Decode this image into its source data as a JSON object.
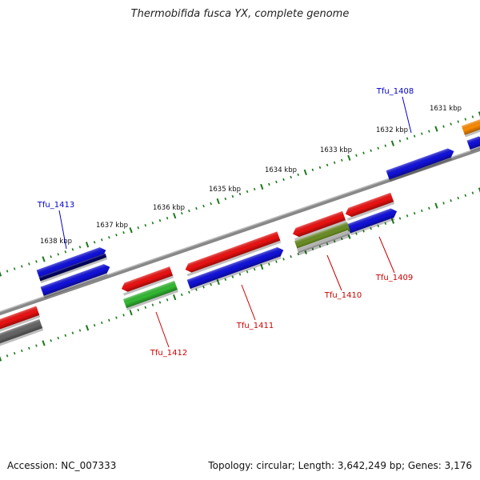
{
  "title": "Thermobifida fusca YX, complete genome",
  "footer": {
    "accession": "Accession: NC_007333",
    "summary": "Topology: circular; Length: 3,642,249 bp; Genes: 3,176"
  },
  "colors": {
    "backbone": "#888888",
    "tick": "#1a7a1a",
    "red": "#ee1111",
    "blue": "#1111dd",
    "green": "#33bb33",
    "olive": "#6b8e23",
    "orange": "#ff8c00",
    "gray": "#666666",
    "navy": "#000066",
    "label_red": "#cc0000",
    "label_blue": "#0000cc"
  },
  "scale_labels": [
    "1631 kbp",
    "1632 kbp",
    "1633 kbp",
    "1634 kbp",
    "1635 kbp",
    "1636 kbp",
    "1637 kbp",
    "1638 kbp"
  ],
  "gene_labels": [
    {
      "name": "Tfu_1408",
      "color": "blue"
    },
    {
      "name": "Tfu_1413",
      "color": "blue"
    },
    {
      "name": "Tfu_1409",
      "color": "red"
    },
    {
      "name": "Tfu_1410",
      "color": "red"
    },
    {
      "name": "Tfu_1411",
      "color": "red"
    },
    {
      "name": "Tfu_1412",
      "color": "red"
    }
  ]
}
